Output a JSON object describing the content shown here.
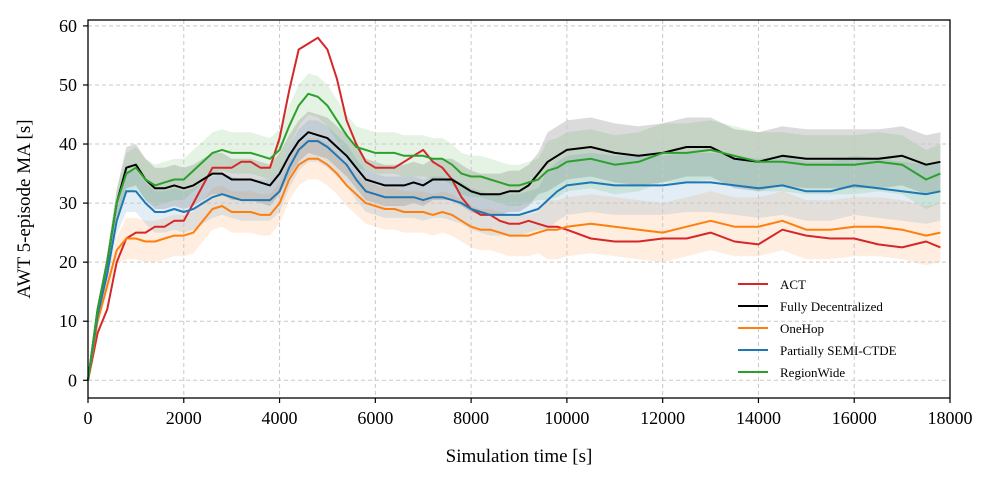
{
  "chart_data": {
    "type": "line",
    "xlabel": "Simulation time [s]",
    "ylabel": "AWT 5-episode MA  [s]",
    "xlim": [
      0,
      18000
    ],
    "ylim": [
      -3,
      61
    ],
    "x_ticks": [
      0,
      2000,
      4000,
      6000,
      8000,
      10000,
      12000,
      14000,
      16000,
      18000
    ],
    "y_ticks": [
      0,
      10,
      20,
      30,
      40,
      50,
      60
    ],
    "grid": true,
    "legend_position": "lower-right",
    "series": [
      {
        "name": "ACT",
        "color": "#d62728",
        "x": [
          0,
          200,
          400,
          600,
          800,
          1000,
          1200,
          1400,
          1600,
          1800,
          2000,
          2200,
          2400,
          2600,
          2800,
          3000,
          3200,
          3400,
          3600,
          3800,
          4000,
          4200,
          4400,
          4600,
          4800,
          5000,
          5200,
          5400,
          5600,
          5800,
          6000,
          6200,
          6400,
          6600,
          6800,
          7000,
          7200,
          7400,
          7600,
          7800,
          8000,
          8200,
          8400,
          8600,
          8800,
          9000,
          9200,
          9400,
          9600,
          9800,
          10000,
          10500,
          11000,
          11500,
          12000,
          12500,
          13000,
          13500,
          14000,
          14500,
          15000,
          15500,
          16000,
          16500,
          17000,
          17500,
          17800
        ],
        "values": [
          0,
          8,
          12,
          20,
          24,
          25,
          25,
          26,
          26,
          27,
          27,
          30,
          33,
          36,
          36,
          36,
          37,
          37,
          36,
          36,
          41,
          49,
          56,
          57,
          58,
          56,
          51,
          44,
          40,
          37,
          36,
          36,
          36,
          37,
          38,
          39,
          37,
          36,
          34,
          31,
          29,
          28,
          28,
          27,
          26.5,
          26.5,
          27,
          26.5,
          26,
          26,
          25.5,
          24,
          23.5,
          23.5,
          24,
          24,
          25,
          23.5,
          23,
          25.5,
          24.5,
          24,
          24,
          23,
          22.5,
          23.5,
          22.5
        ]
      },
      {
        "name": "Fully Decentralized",
        "color": "#000000",
        "x": [
          0,
          200,
          400,
          600,
          800,
          1000,
          1200,
          1400,
          1600,
          1800,
          2000,
          2200,
          2400,
          2600,
          2800,
          3000,
          3200,
          3400,
          3600,
          3800,
          4000,
          4200,
          4400,
          4600,
          4800,
          5000,
          5200,
          5400,
          5600,
          5800,
          6000,
          6200,
          6400,
          6600,
          6800,
          7000,
          7200,
          7400,
          7600,
          7800,
          8000,
          8200,
          8400,
          8600,
          8800,
          9000,
          9200,
          9400,
          9600,
          9800,
          10000,
          10500,
          11000,
          11500,
          12000,
          12500,
          13000,
          13500,
          14000,
          14500,
          15000,
          15500,
          16000,
          16500,
          17000,
          17500,
          17800
        ],
        "values": [
          0,
          12,
          20,
          30,
          36,
          36.5,
          34,
          32.5,
          32.5,
          33,
          32.5,
          33,
          34,
          35,
          35,
          34,
          34,
          34,
          33.5,
          33,
          35,
          38,
          40.5,
          42,
          41.5,
          41,
          39.5,
          38,
          36,
          34,
          33.5,
          33,
          33,
          33,
          33.5,
          33,
          34,
          34,
          34,
          33,
          32,
          31.5,
          31.5,
          31.5,
          32,
          32,
          33,
          35,
          37,
          38,
          39,
          39.5,
          38.5,
          38,
          38.5,
          39.5,
          39.5,
          37.5,
          37,
          38,
          37.5,
          37.5,
          37.5,
          37.5,
          38,
          36.5,
          37
        ]
      },
      {
        "name": "OneHop",
        "color": "#ff7f0e",
        "x": [
          0,
          200,
          400,
          600,
          800,
          1000,
          1200,
          1400,
          1600,
          1800,
          2000,
          2200,
          2400,
          2600,
          2800,
          3000,
          3200,
          3400,
          3600,
          3800,
          4000,
          4200,
          4400,
          4600,
          4800,
          5000,
          5200,
          5400,
          5600,
          5800,
          6000,
          6200,
          6400,
          6600,
          6800,
          7000,
          7200,
          7400,
          7600,
          7800,
          8000,
          8200,
          8400,
          8600,
          8800,
          9000,
          9200,
          9400,
          9600,
          9800,
          10000,
          10500,
          11000,
          11500,
          12000,
          12500,
          13000,
          13500,
          14000,
          14500,
          15000,
          15500,
          16000,
          16500,
          17000,
          17500,
          17800
        ],
        "values": [
          0,
          10,
          16,
          22,
          24,
          24,
          23.5,
          23.5,
          24,
          24.5,
          24.5,
          25,
          27,
          29,
          29.5,
          28.5,
          28.5,
          28.5,
          28,
          28,
          30,
          34,
          36.5,
          37.5,
          37.5,
          36.5,
          35,
          33,
          31.5,
          30,
          29.5,
          29,
          29,
          28.5,
          28.5,
          28.5,
          28,
          28.5,
          28,
          27,
          26,
          25.5,
          25.5,
          25,
          24.5,
          24.5,
          24.5,
          25,
          25.5,
          25.5,
          26,
          26.5,
          26,
          25.5,
          25,
          26,
          27,
          26,
          26,
          27,
          25.5,
          25.5,
          26,
          26,
          25.5,
          24.5,
          25
        ]
      },
      {
        "name": "Partially SEMI-CTDE",
        "color": "#1f77b4",
        "x": [
          0,
          200,
          400,
          600,
          800,
          1000,
          1200,
          1400,
          1600,
          1800,
          2000,
          2200,
          2400,
          2600,
          2800,
          3000,
          3200,
          3400,
          3600,
          3800,
          4000,
          4200,
          4400,
          4600,
          4800,
          5000,
          5200,
          5400,
          5600,
          5800,
          6000,
          6200,
          6400,
          6600,
          6800,
          7000,
          7200,
          7400,
          7600,
          7800,
          8000,
          8200,
          8400,
          8600,
          8800,
          9000,
          9200,
          9400,
          9600,
          9800,
          10000,
          10500,
          11000,
          11500,
          12000,
          12500,
          13000,
          13500,
          14000,
          14500,
          15000,
          15500,
          16000,
          16500,
          17000,
          17500,
          17800
        ],
        "values": [
          0,
          11,
          18,
          27,
          32,
          32,
          30,
          28.5,
          28.5,
          29,
          28.5,
          29,
          30,
          31,
          31.5,
          31,
          30.5,
          30.5,
          30.5,
          30.5,
          32,
          36,
          39,
          40.5,
          40.5,
          39.5,
          38,
          36.5,
          34,
          32,
          31.5,
          31,
          31,
          31,
          31,
          30.5,
          31,
          31,
          30.5,
          30,
          29,
          28.5,
          28,
          28,
          28,
          28,
          28.5,
          29,
          30.5,
          32,
          33,
          33.5,
          33,
          33,
          33,
          33.5,
          33.5,
          33,
          32.5,
          33,
          32,
          32,
          33,
          32.5,
          32,
          31.5,
          32
        ]
      },
      {
        "name": "RegionWide",
        "color": "#2ca02c",
        "x": [
          0,
          200,
          400,
          600,
          800,
          1000,
          1200,
          1400,
          1600,
          1800,
          2000,
          2200,
          2400,
          2600,
          2800,
          3000,
          3200,
          3400,
          3600,
          3800,
          4000,
          4200,
          4400,
          4600,
          4800,
          5000,
          5200,
          5400,
          5600,
          5800,
          6000,
          6200,
          6400,
          6600,
          6800,
          7000,
          7200,
          7400,
          7600,
          7800,
          8000,
          8200,
          8400,
          8600,
          8800,
          9000,
          9200,
          9400,
          9600,
          9800,
          10000,
          10500,
          11000,
          11500,
          12000,
          12500,
          13000,
          13500,
          14000,
          14500,
          15000,
          15500,
          16000,
          16500,
          17000,
          17500,
          17800
        ],
        "values": [
          0,
          12,
          20,
          30,
          35,
          36,
          34,
          33,
          33.5,
          34,
          34,
          35.5,
          37,
          38.5,
          39,
          38.5,
          38.5,
          38.5,
          38,
          37.5,
          39,
          43,
          46.5,
          48.5,
          48,
          46.5,
          44,
          41.5,
          39.5,
          39,
          38.5,
          38.5,
          38.5,
          38,
          38,
          38,
          37.5,
          37.5,
          36.5,
          35,
          34.5,
          34.5,
          34,
          33.5,
          33,
          33,
          33.5,
          34,
          35.5,
          36,
          37,
          37.5,
          36.5,
          37,
          38.5,
          38.5,
          39,
          38,
          37,
          37,
          36.5,
          36.5,
          36.5,
          37,
          36.5,
          34,
          35
        ]
      }
    ]
  }
}
